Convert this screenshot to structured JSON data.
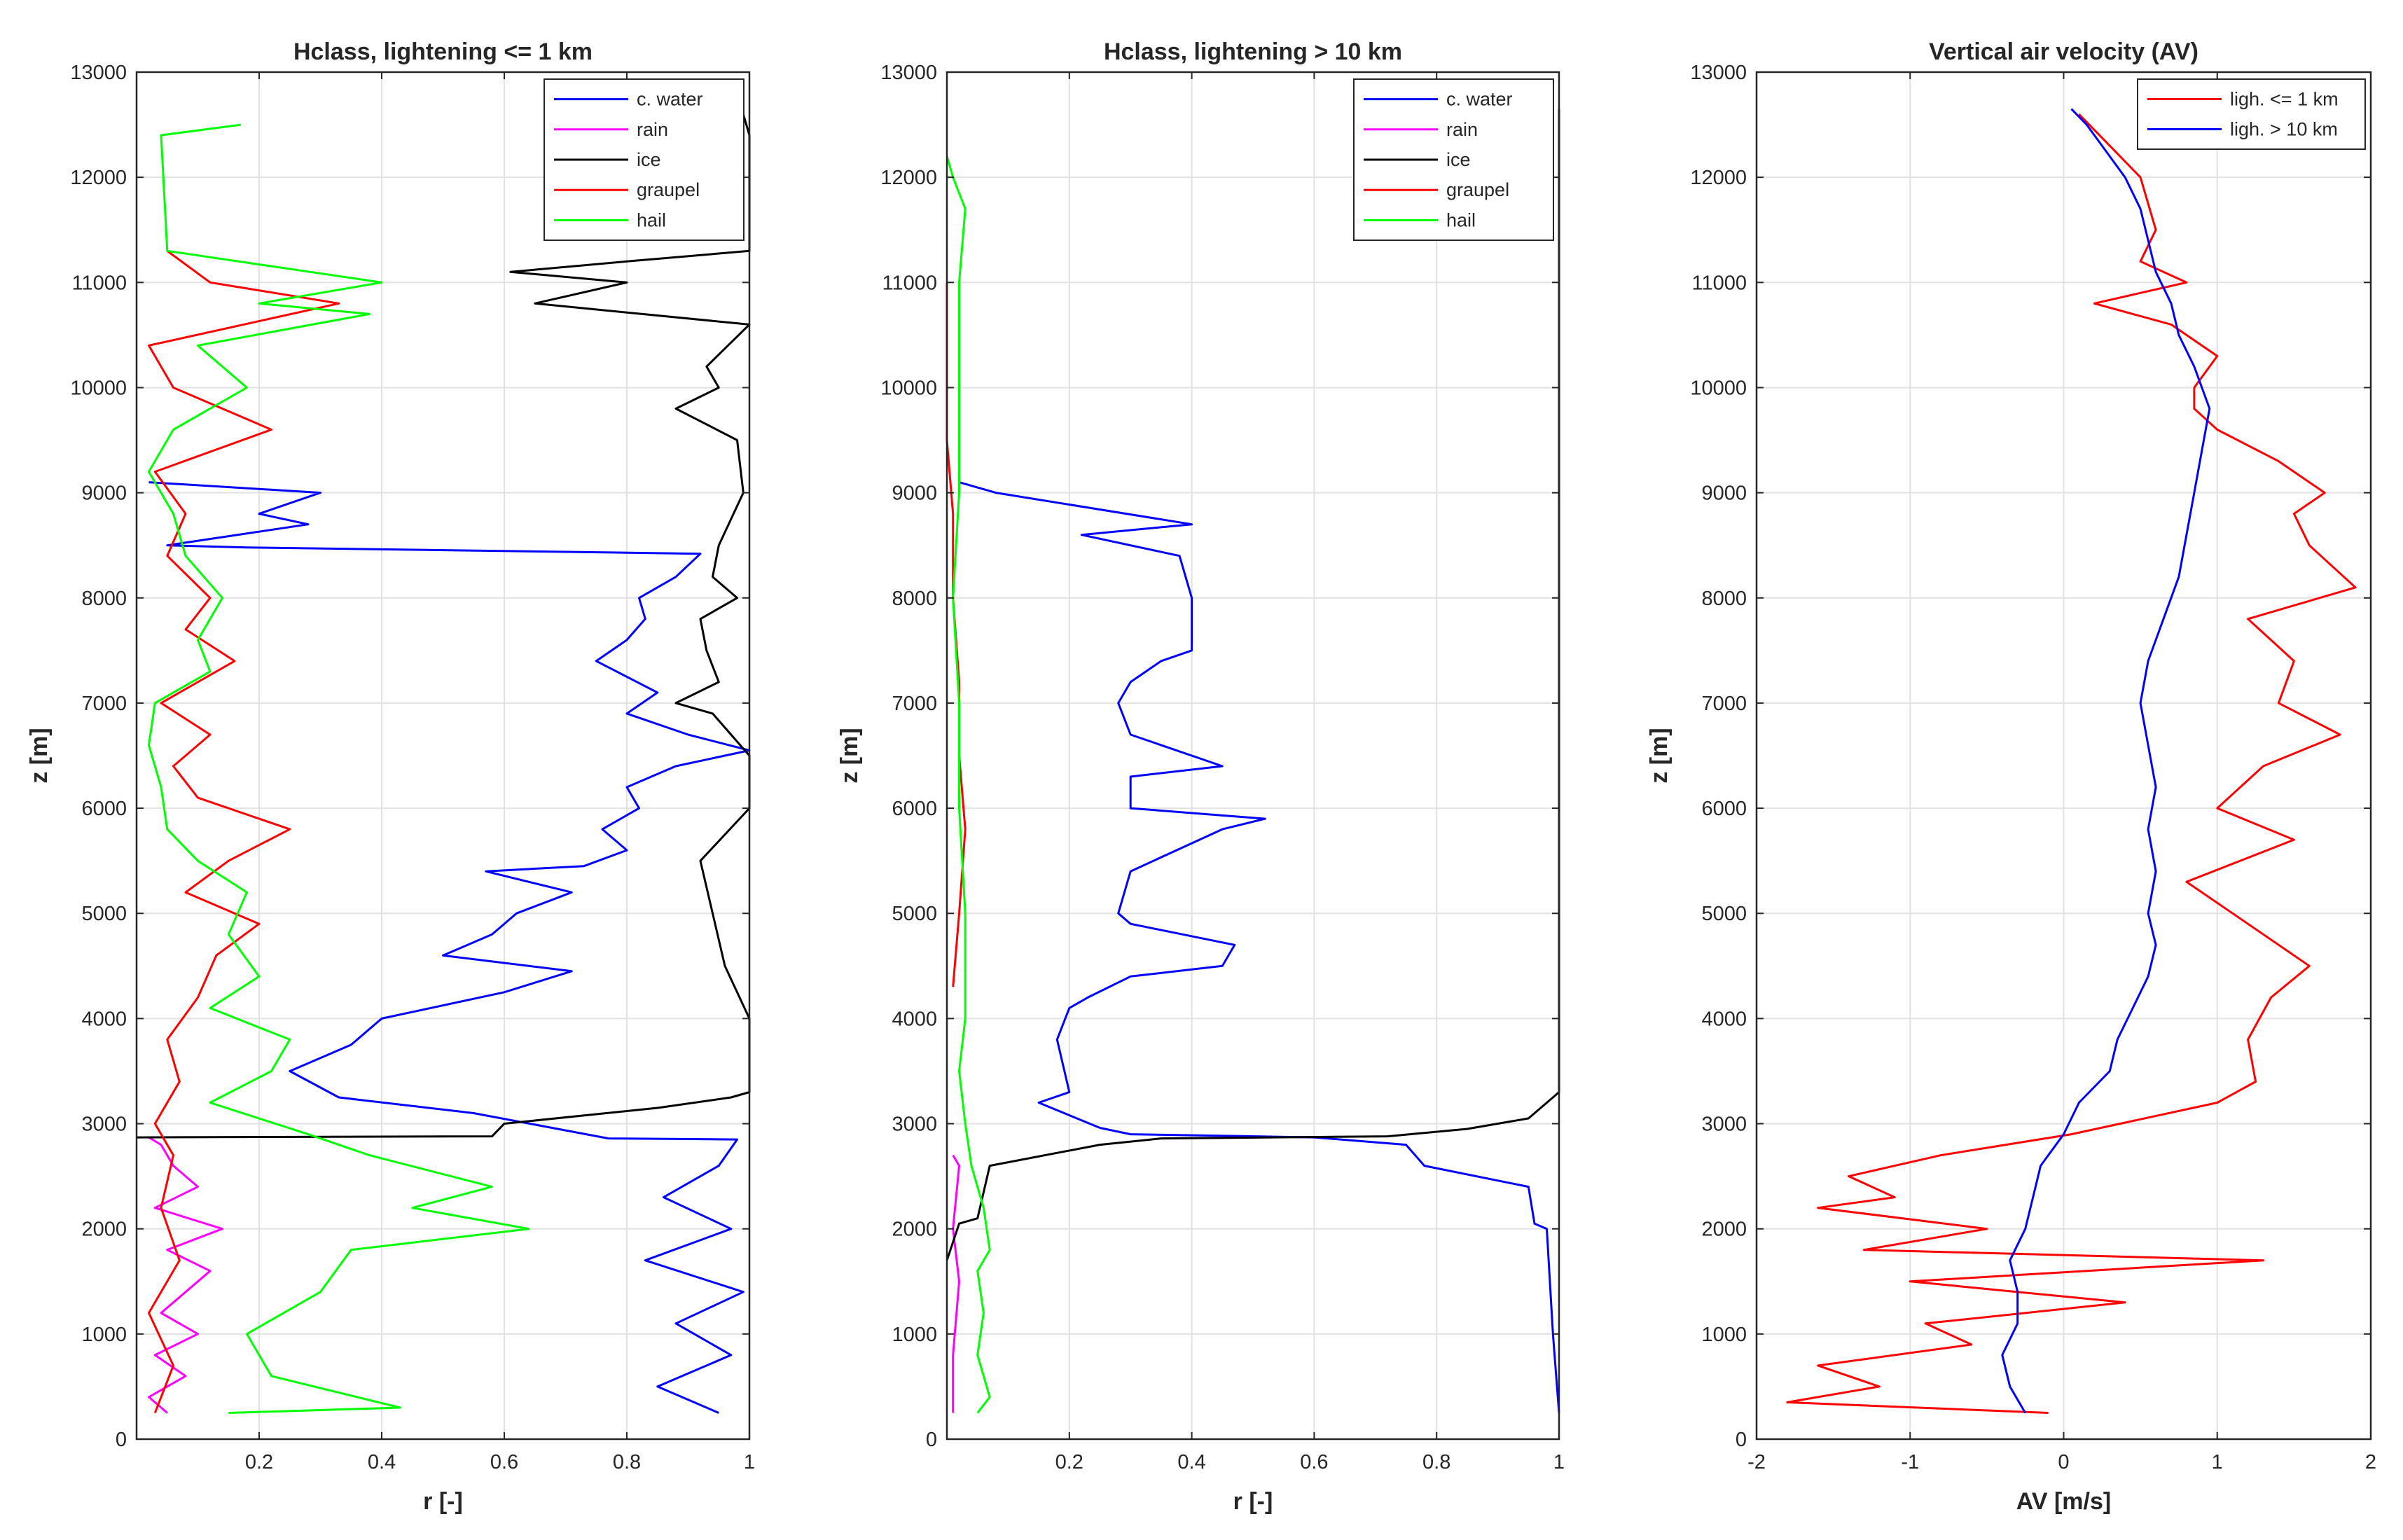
{
  "chart_data": [
    {
      "type": "line",
      "title": "Hclass, lightening <= 1 km",
      "xlabel": "r [-]",
      "ylabel": "z [m]",
      "xlim": [
        0,
        1
      ],
      "ylim": [
        0,
        13000
      ],
      "grid": true,
      "legend_position": "top-right",
      "xticks": [
        0.2,
        0.4,
        0.6,
        0.8,
        1
      ],
      "xtick_labels": [
        "0.2",
        "0.4",
        "0.6",
        "0.8",
        "1"
      ],
      "yticks": [
        0,
        1000,
        2000,
        3000,
        4000,
        5000,
        6000,
        7000,
        8000,
        9000,
        10000,
        11000,
        12000,
        13000
      ],
      "ytick_labels": [
        "0",
        "1000",
        "2000",
        "3000",
        "4000",
        "5000",
        "6000",
        "7000",
        "8000",
        "9000",
        "10000",
        "11000",
        "12000",
        "13000"
      ],
      "series": [
        {
          "name": "c. water",
          "color": "#0000ff",
          "z": [
            250,
            500,
            800,
            1100,
            1400,
            1700,
            2000,
            2300,
            2600,
            2850,
            2860,
            3100,
            3250,
            3500,
            3750,
            4000,
            4250,
            4450,
            4600,
            4800,
            5000,
            5200,
            5400,
            5450,
            5600,
            5800,
            6000,
            6200,
            6400,
            6550,
            6700,
            6900,
            7100,
            7400,
            7600,
            7800,
            8000,
            8200,
            8420,
            8480,
            8500,
            8700,
            8800,
            9000,
            9100
          ],
          "values": [
            0.95,
            0.85,
            0.97,
            0.88,
            0.99,
            0.83,
            0.97,
            0.86,
            0.95,
            0.98,
            0.77,
            0.55,
            0.33,
            0.25,
            0.35,
            0.4,
            0.6,
            0.71,
            0.5,
            0.58,
            0.62,
            0.71,
            0.57,
            0.73,
            0.8,
            0.76,
            0.82,
            0.8,
            0.88,
            1.0,
            0.9,
            0.8,
            0.85,
            0.75,
            0.8,
            0.83,
            0.82,
            0.88,
            0.92,
            0.18,
            0.05,
            0.28,
            0.2,
            0.3,
            0.02
          ]
        },
        {
          "name": "rain",
          "color": "#ff00ff",
          "z": [
            250,
            400,
            600,
            800,
            1000,
            1200,
            1400,
            1600,
            1800,
            2000,
            2200,
            2400,
            2600,
            2800,
            2870
          ],
          "values": [
            0.05,
            0.02,
            0.08,
            0.03,
            0.1,
            0.04,
            0.08,
            0.12,
            0.05,
            0.14,
            0.03,
            0.1,
            0.06,
            0.04,
            0.02
          ]
        },
        {
          "name": "ice",
          "color": "#000000",
          "z": [
            2870,
            2880,
            3000,
            3150,
            3250,
            3300,
            4000,
            4500,
            5000,
            5500,
            6000,
            6500,
            6900,
            7000,
            7200,
            7500,
            7800,
            8000,
            8200,
            8500,
            9000,
            9500,
            9800,
            10000,
            10200,
            10600,
            10800,
            11000,
            11100,
            11200,
            11300,
            11500,
            12000,
            12400,
            12600
          ],
          "values": [
            0.0,
            0.58,
            0.6,
            0.85,
            0.97,
            1.0,
            1.0,
            0.96,
            0.94,
            0.92,
            1.0,
            1.0,
            0.94,
            0.88,
            0.95,
            0.93,
            0.92,
            0.98,
            0.94,
            0.95,
            0.99,
            0.98,
            0.88,
            0.95,
            0.93,
            1.0,
            0.65,
            0.8,
            0.61,
            0.8,
            1.0,
            1.0,
            1.0,
            1.0,
            0.99
          ]
        },
        {
          "name": "graupel",
          "color": "#ff0000",
          "z": [
            250,
            700,
            1200,
            1700,
            2200,
            2700,
            3000,
            3400,
            3800,
            4200,
            4600,
            4900,
            5200,
            5500,
            5800,
            6100,
            6400,
            6700,
            7000,
            7400,
            7700,
            8000,
            8400,
            8800,
            9200,
            9600,
            10000,
            10400,
            10800,
            11000,
            11300
          ],
          "values": [
            0.03,
            0.06,
            0.02,
            0.07,
            0.04,
            0.06,
            0.03,
            0.07,
            0.05,
            0.1,
            0.13,
            0.2,
            0.08,
            0.15,
            0.25,
            0.1,
            0.06,
            0.12,
            0.04,
            0.16,
            0.08,
            0.12,
            0.05,
            0.08,
            0.03,
            0.22,
            0.06,
            0.02,
            0.33,
            0.12,
            0.05
          ]
        },
        {
          "name": "hail",
          "color": "#00ff00",
          "z": [
            250,
            300,
            600,
            1000,
            1400,
            1800,
            2000,
            2200,
            2400,
            2700,
            2900,
            3200,
            3500,
            3800,
            4100,
            4400,
            4800,
            5200,
            5500,
            5800,
            6200,
            6600,
            7000,
            7300,
            7600,
            8000,
            8400,
            8800,
            9200,
            9600,
            10000,
            10400,
            10700,
            10800,
            11000,
            11300,
            12400,
            12500
          ],
          "values": [
            0.15,
            0.43,
            0.22,
            0.18,
            0.3,
            0.35,
            0.64,
            0.45,
            0.58,
            0.38,
            0.28,
            0.12,
            0.22,
            0.25,
            0.12,
            0.2,
            0.15,
            0.18,
            0.1,
            0.05,
            0.04,
            0.02,
            0.03,
            0.12,
            0.1,
            0.14,
            0.08,
            0.06,
            0.02,
            0.06,
            0.18,
            0.1,
            0.38,
            0.2,
            0.4,
            0.05,
            0.04,
            0.17
          ]
        }
      ]
    },
    {
      "type": "line",
      "title": "Hclass, lightening > 10 km",
      "xlabel": "r [-]",
      "ylabel": "z [m]",
      "xlim": [
        0,
        1
      ],
      "ylim": [
        0,
        13000
      ],
      "grid": true,
      "legend_position": "top-right",
      "xticks": [
        0.2,
        0.4,
        0.6,
        0.8,
        1
      ],
      "xtick_labels": [
        "0.2",
        "0.4",
        "0.6",
        "0.8",
        "1"
      ],
      "yticks": [
        0,
        1000,
        2000,
        3000,
        4000,
        5000,
        6000,
        7000,
        8000,
        9000,
        10000,
        11000,
        12000,
        13000
      ],
      "ytick_labels": [
        "0",
        "1000",
        "2000",
        "3000",
        "4000",
        "5000",
        "6000",
        "7000",
        "8000",
        "9000",
        "10000",
        "11000",
        "12000",
        "13000"
      ],
      "series": [
        {
          "name": "c. water",
          "color": "#0000ff",
          "z": [
            250,
            1000,
            2000,
            2050,
            2400,
            2600,
            2800,
            2870,
            2900,
            2960,
            3200,
            3300,
            3800,
            4100,
            4200,
            4400,
            4500,
            4700,
            4900,
            5000,
            5400,
            5800,
            5900,
            6000,
            6300,
            6400,
            6700,
            7000,
            7200,
            7400,
            7500,
            8000,
            8400,
            8600,
            8700,
            9000,
            9100
          ],
          "values": [
            1.0,
            0.99,
            0.98,
            0.96,
            0.95,
            0.78,
            0.75,
            0.6,
            0.3,
            0.25,
            0.15,
            0.2,
            0.18,
            0.2,
            0.23,
            0.3,
            0.45,
            0.47,
            0.3,
            0.28,
            0.3,
            0.45,
            0.52,
            0.3,
            0.3,
            0.45,
            0.3,
            0.28,
            0.3,
            0.35,
            0.4,
            0.4,
            0.38,
            0.22,
            0.4,
            0.08,
            0.02
          ]
        },
        {
          "name": "rain",
          "color": "#ff00ff",
          "z": [
            250,
            800,
            1500,
            2000,
            2600,
            2700
          ],
          "values": [
            0.01,
            0.01,
            0.02,
            0.01,
            0.02,
            0.01
          ]
        },
        {
          "name": "ice",
          "color": "#000000",
          "z": [
            1700,
            2050,
            2100,
            2600,
            2800,
            2860,
            2880,
            2950,
            3050,
            3150,
            3250,
            3300,
            6000,
            9000,
            12000,
            12650
          ],
          "values": [
            0.0,
            0.02,
            0.05,
            0.07,
            0.25,
            0.35,
            0.72,
            0.85,
            0.95,
            0.97,
            0.99,
            1.0,
            1.0,
            1.0,
            1.0,
            1.0
          ]
        },
        {
          "name": "graupel",
          "color": "#ff0000",
          "z": [
            4300,
            5000,
            5800,
            6500,
            7200,
            8000,
            8800,
            9500,
            10000,
            11000
          ],
          "values": [
            0.01,
            0.02,
            0.03,
            0.02,
            0.02,
            0.01,
            0.01,
            0.0,
            0.0,
            0.0
          ]
        },
        {
          "name": "hail",
          "color": "#00ff00",
          "z": [
            250,
            400,
            800,
            1200,
            1600,
            1800,
            2200,
            2600,
            3000,
            3500,
            4000,
            5000,
            6000,
            7000,
            8000,
            9000,
            10000,
            11000,
            11700,
            12000,
            12200
          ],
          "values": [
            0.05,
            0.07,
            0.05,
            0.06,
            0.05,
            0.07,
            0.06,
            0.04,
            0.03,
            0.02,
            0.03,
            0.03,
            0.02,
            0.02,
            0.01,
            0.02,
            0.02,
            0.02,
            0.03,
            0.01,
            0.0
          ]
        }
      ]
    },
    {
      "type": "line",
      "title": "Vertical air velocity (AV)",
      "xlabel": "AV [m/s]",
      "ylabel": "z [m]",
      "xlim": [
        -2,
        2
      ],
      "ylim": [
        0,
        13000
      ],
      "grid": true,
      "legend_position": "top-right",
      "xticks": [
        -2,
        -1,
        0,
        1,
        2
      ],
      "xtick_labels": [
        "-2",
        "-1",
        "0",
        "1",
        "2"
      ],
      "yticks": [
        0,
        1000,
        2000,
        3000,
        4000,
        5000,
        6000,
        7000,
        8000,
        9000,
        10000,
        11000,
        12000,
        13000
      ],
      "ytick_labels": [
        "0",
        "1000",
        "2000",
        "3000",
        "4000",
        "5000",
        "6000",
        "7000",
        "8000",
        "9000",
        "10000",
        "11000",
        "12000",
        "13000"
      ],
      "series": [
        {
          "name": "ligh. <= 1 km",
          "color": "#ff0000",
          "z": [
            250,
            350,
            500,
            700,
            900,
            1100,
            1300,
            1500,
            1700,
            1800,
            2000,
            2200,
            2300,
            2500,
            2700,
            2900,
            3200,
            3400,
            3800,
            4200,
            4500,
            5000,
            5300,
            5700,
            6000,
            6400,
            6700,
            7000,
            7400,
            7800,
            8100,
            8500,
            8800,
            9000,
            9300,
            9600,
            9800,
            10000,
            10300,
            10600,
            10800,
            11000,
            11200,
            11500,
            12000,
            12300,
            12600
          ],
          "values": [
            -0.1,
            -1.8,
            -1.2,
            -1.6,
            -0.6,
            -0.9,
            0.4,
            -1.0,
            1.3,
            -1.3,
            -0.5,
            -1.6,
            -1.1,
            -1.4,
            -0.8,
            0.05,
            1.0,
            1.25,
            1.2,
            1.35,
            1.6,
            1.1,
            0.8,
            1.5,
            1.0,
            1.3,
            1.8,
            1.4,
            1.5,
            1.2,
            1.9,
            1.6,
            1.5,
            1.7,
            1.4,
            1.0,
            0.85,
            0.85,
            1.0,
            0.7,
            0.2,
            0.8,
            0.5,
            0.6,
            0.5,
            0.3,
            0.1
          ]
        },
        {
          "name": "ligh. > 10 km",
          "color": "#0000ff",
          "z": [
            250,
            500,
            800,
            1100,
            1400,
            1700,
            2000,
            2300,
            2600,
            2900,
            3200,
            3500,
            3800,
            4100,
            4400,
            4700,
            5000,
            5400,
            5800,
            6200,
            6600,
            7000,
            7400,
            7800,
            8200,
            8600,
            9000,
            9400,
            9800,
            10200,
            10500,
            10800,
            11100,
            11400,
            11700,
            12000,
            12300,
            12500,
            12650
          ],
          "values": [
            -0.25,
            -0.35,
            -0.4,
            -0.3,
            -0.3,
            -0.35,
            -0.25,
            -0.2,
            -0.15,
            0.0,
            0.1,
            0.3,
            0.35,
            0.45,
            0.55,
            0.6,
            0.55,
            0.6,
            0.55,
            0.6,
            0.55,
            0.5,
            0.55,
            0.65,
            0.75,
            0.8,
            0.85,
            0.9,
            0.95,
            0.85,
            0.75,
            0.7,
            0.6,
            0.55,
            0.5,
            0.4,
            0.25,
            0.15,
            0.05
          ]
        }
      ]
    }
  ]
}
